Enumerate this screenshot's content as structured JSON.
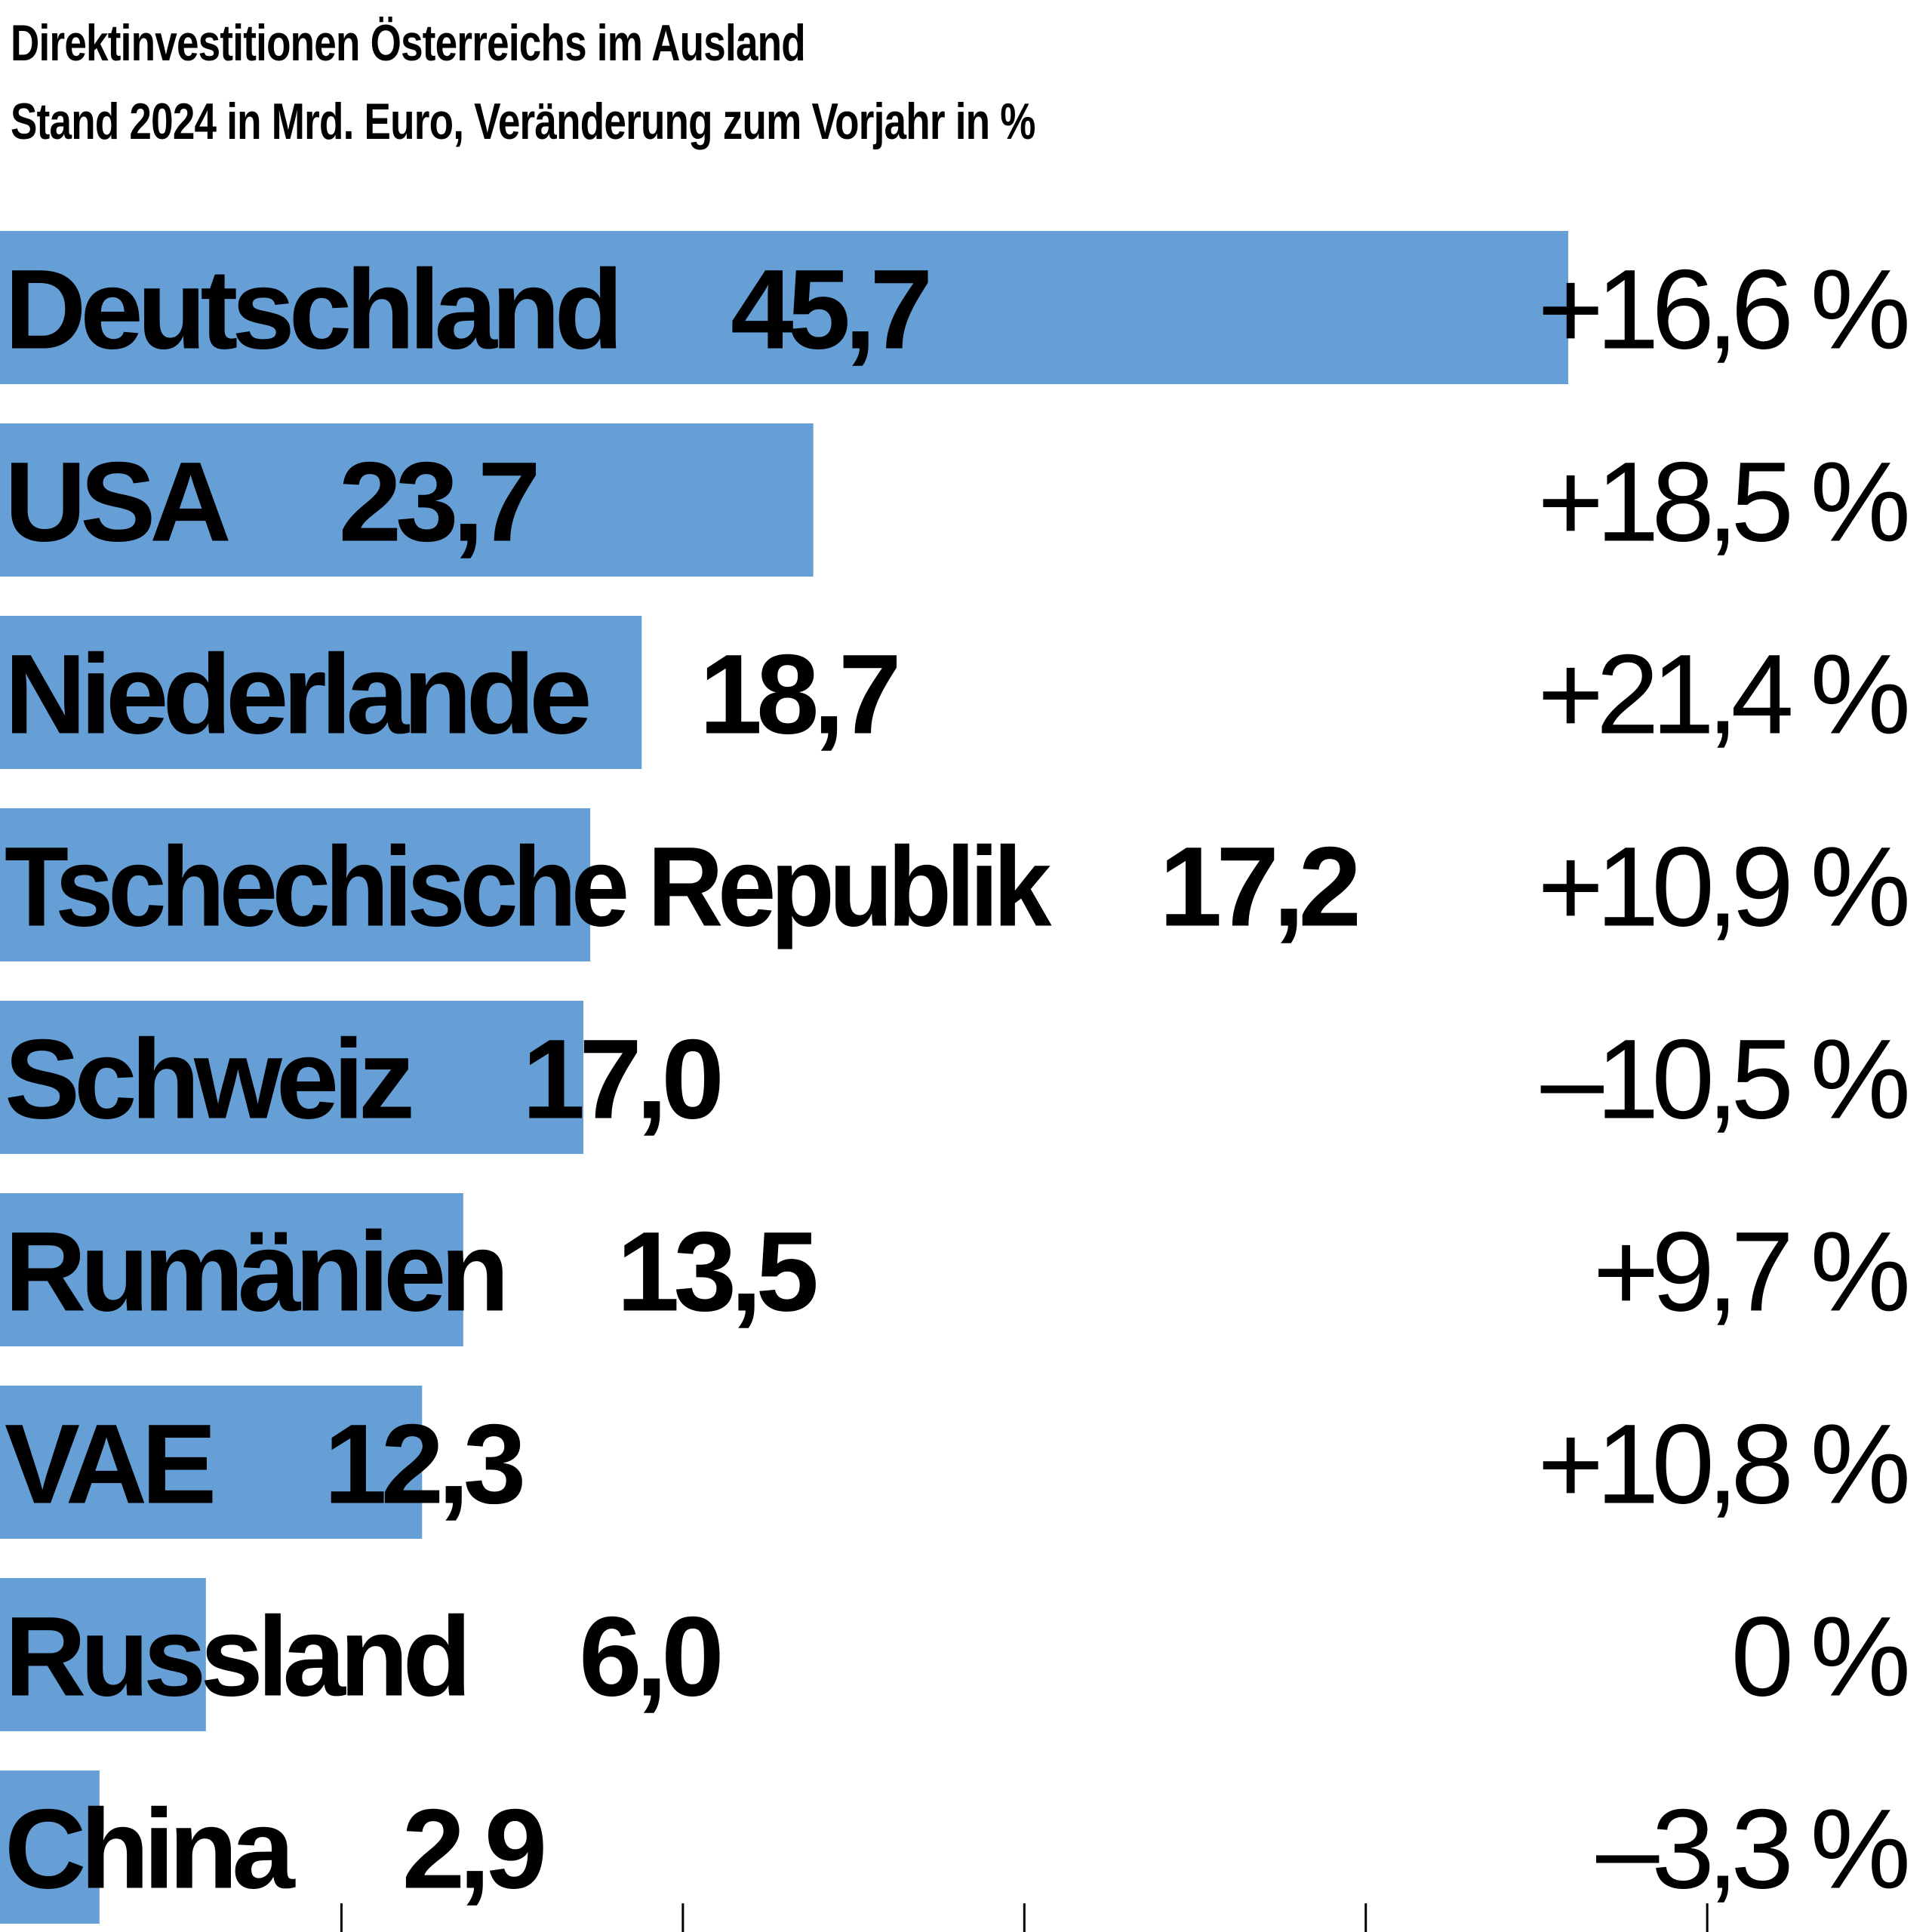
{
  "chart_data": {
    "type": "bar",
    "orientation": "horizontal",
    "title": "Direktinvestitionen Österreichs im Ausland",
    "subtitle": "Stand 2024 in Mrd. Euro, Veränderung zum Vorjahr in %",
    "categories": [
      "Deutschland",
      "USA",
      "Niederlande",
      "Tschechische Republik",
      "Schweiz",
      "Rumänien",
      "VAE",
      "Russland",
      "China"
    ],
    "values": [
      45.7,
      23.7,
      18.7,
      17.2,
      17.0,
      13.5,
      12.3,
      6.0,
      2.9
    ],
    "value_labels": [
      "45,7",
      "23,7",
      "18,7",
      "17,2",
      "17,0",
      "13,5",
      "12,3",
      "6,0",
      "2,9"
    ],
    "change_labels": [
      "+16,6 %",
      "+18,5 %",
      "+21,4 %",
      "+10,9 %",
      "–10,5 %",
      "+9,7 %",
      "+10,8 %",
      "0 %",
      "–3,3 %"
    ],
    "xlim": [
      0,
      50
    ],
    "axis_ticks": [
      10,
      20,
      30,
      40,
      50
    ],
    "grid": false,
    "bar_color": "#659fd6",
    "text_color": "#000000"
  }
}
